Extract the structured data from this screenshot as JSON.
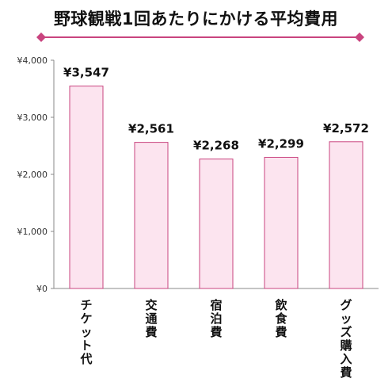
{
  "chart_data": {
    "type": "bar",
    "title": "野球観戦1回あたりにかける平均費用",
    "categories": [
      "チケット代",
      "交通費",
      "宿泊費",
      "飲食費",
      "グッズ購入費"
    ],
    "values": [
      3547,
      2561,
      2268,
      2299,
      2572
    ],
    "value_labels": [
      "¥3,547",
      "¥2,561",
      "¥2,268",
      "¥2,299",
      "¥2,572"
    ],
    "y_ticks": [
      "¥0",
      "¥1,000",
      "¥2,000",
      "¥3,000",
      "¥4,000"
    ],
    "ylim": [
      0,
      4000
    ],
    "grid": false,
    "legend": "none",
    "colors": {
      "bar_fill": "#fce4ef",
      "bar_stroke": "#c9447f",
      "accent_line": "#c9447f",
      "axis": "#888888"
    }
  }
}
